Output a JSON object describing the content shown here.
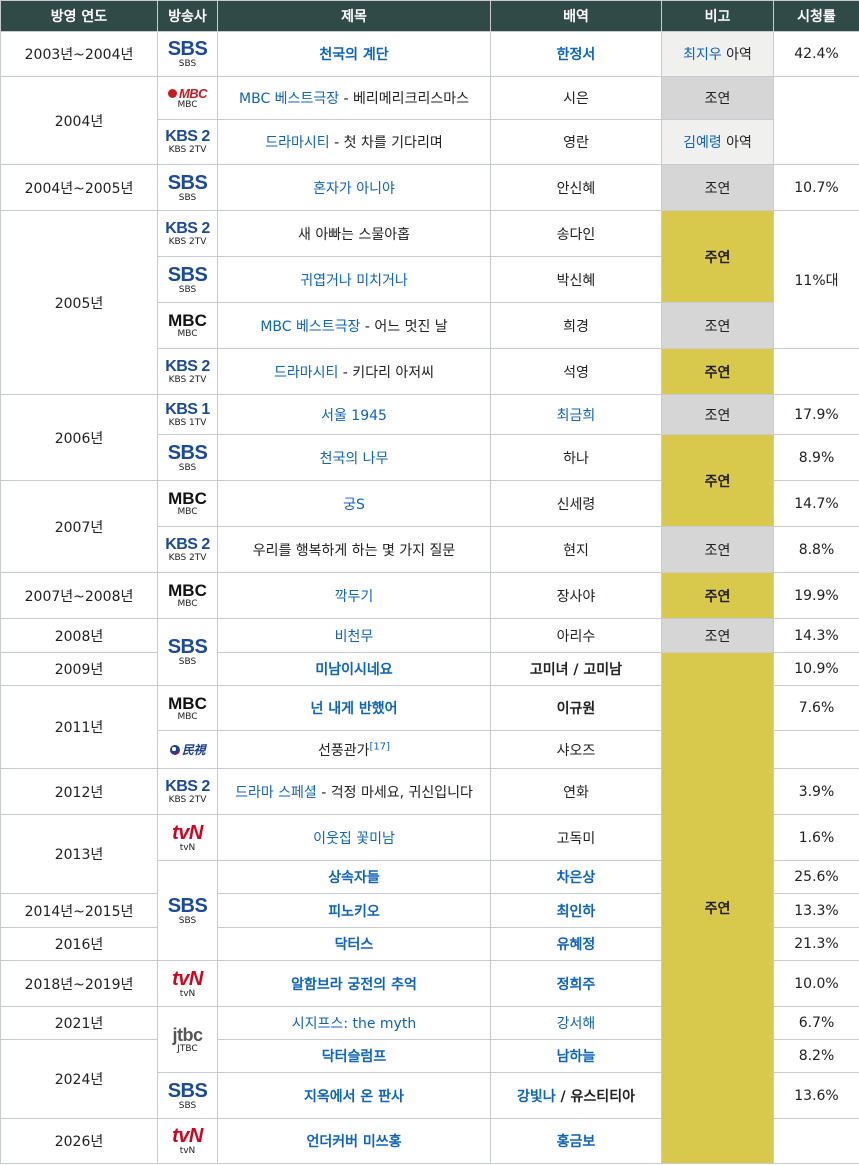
{
  "header": {
    "year": "방영 연도",
    "network": "방송사",
    "title": "제목",
    "role": "배역",
    "note": "비고",
    "rating": "시청률"
  },
  "colors": {
    "header_bg": "#2f4a47",
    "lead": "#d8c84c",
    "support": "#d6d6d6",
    "child": "#f0f0ee",
    "link": "#0b63c4"
  },
  "rows": [
    {
      "year": "2003년~2004년",
      "network": {
        "mark": "SBS",
        "cap": "SBS"
      },
      "title": "천국의 계단",
      "role": "한정서",
      "note_link": "최지우",
      "note_text": " 아역",
      "rating": "42.4%"
    },
    {
      "year": "2004년",
      "network": {
        "mark": "MBC",
        "cap": "MBC"
      },
      "title_link": "MBC 베스트극장",
      "title_rest": " - 베리메리크리스마스",
      "role": "시은",
      "note": "조연",
      "rating": ""
    },
    {
      "network": {
        "mark": "KBS 2",
        "cap": "KBS 2TV"
      },
      "title_link": "드라마시티",
      "title_rest": " - 첫 차를 기다리며",
      "role": "영란",
      "note_link": "김예령",
      "note_text": " 아역"
    },
    {
      "year": "2004년~2005년",
      "network": {
        "mark": "SBS",
        "cap": "SBS"
      },
      "title": "혼자가 아니야",
      "role": "안신혜",
      "note": "조연",
      "rating": "10.7%"
    },
    {
      "year": "2005년",
      "network": {
        "mark": "KBS 2",
        "cap": "KBS 2TV"
      },
      "title": "새 아빠는 스물아홉",
      "role": "송다인",
      "note": "주연"
    },
    {
      "network": {
        "mark": "SBS",
        "cap": "SBS"
      },
      "title": "귀엽거나 미치거나",
      "role": "박신혜",
      "rating": "11%대"
    },
    {
      "network": {
        "mark": "MBC",
        "cap": "MBC"
      },
      "title_link": "MBC 베스트극장",
      "title_rest": " - 어느 멋진 날",
      "role": "희경",
      "note": "조연"
    },
    {
      "network": {
        "mark": "KBS 2",
        "cap": "KBS 2TV"
      },
      "title_link": "드라마시티",
      "title_rest": " - 키다리 아저씨",
      "role": "석영",
      "note": "주연"
    },
    {
      "year": "2006년",
      "network": {
        "mark": "KBS 1",
        "cap": "KBS 1TV"
      },
      "title": "서울 1945",
      "role": "최금희",
      "note": "조연",
      "rating": "17.9%"
    },
    {
      "network": {
        "mark": "SBS",
        "cap": "SBS"
      },
      "title": "천국의 나무",
      "role": "하나",
      "note": "주연",
      "rating": "8.9%"
    },
    {
      "year": "2007년",
      "network": {
        "mark": "MBC",
        "cap": "MBC"
      },
      "title": "궁S",
      "role": "신세령",
      "rating": "14.7%"
    },
    {
      "network": {
        "mark": "KBS 2",
        "cap": "KBS 2TV"
      },
      "title": "우리를 행복하게 하는 몇 가지 질문",
      "role": "현지",
      "note": "조연",
      "rating": "8.8%"
    },
    {
      "year": "2007년~2008년",
      "network": {
        "mark": "MBC",
        "cap": "MBC"
      },
      "title": "깍두기",
      "role": "장사야",
      "note": "주연",
      "rating": "19.9%"
    },
    {
      "year": "2008년",
      "network": {
        "mark": "SBS",
        "cap": "SBS"
      },
      "title": "비천무",
      "role": "아리수",
      "note": "조연",
      "rating": "14.3%"
    },
    {
      "year": "2009년",
      "title": "미남이시네요",
      "role": "고미녀 / 고미남",
      "note": "주연",
      "rating": "10.9%"
    },
    {
      "year": "2011년",
      "network": {
        "mark": "MBC",
        "cap": "MBC"
      },
      "title": "넌 내게 반했어",
      "role": "이규원",
      "rating": "7.6%"
    },
    {
      "network": {
        "mark": "民視",
        "cap": ""
      },
      "title_plain": "선풍관가",
      "title_ref": "[17]",
      "role": "샤오즈"
    },
    {
      "year": "2012년",
      "network": {
        "mark": "KBS 2",
        "cap": "KBS 2TV"
      },
      "title_link": "드라마 스페셜",
      "title_rest": " - 걱정 마세요, 귀신입니다",
      "role": "연화",
      "rating": "3.9%"
    },
    {
      "year": "2013년",
      "network": {
        "mark": "tvN",
        "cap": "tvN"
      },
      "title": "이웃집 꽃미남",
      "role": "고독미",
      "rating": "1.6%"
    },
    {
      "network": {
        "mark": "SBS",
        "cap": "SBS"
      },
      "title": "상속자들",
      "role": "차은상",
      "rating": "25.6%"
    },
    {
      "year": "2014년~2015년",
      "title": "피노키오",
      "role": "최인하",
      "rating": "13.3%"
    },
    {
      "year": "2016년",
      "title": "닥터스",
      "role": "유혜정",
      "rating": "21.3%"
    },
    {
      "year": "2018년~2019년",
      "network": {
        "mark": "tvN",
        "cap": "tvN"
      },
      "title": "알함브라 궁전의 추억",
      "role": "정희주",
      "rating": "10.0%"
    },
    {
      "year": "2021년",
      "network": {
        "mark": "jtbc",
        "cap": "JTBC"
      },
      "title": "시지프스: the myth",
      "role": "강서해",
      "rating": "6.7%"
    },
    {
      "year": "2024년",
      "title": "닥터슬럼프",
      "role": "남하늘",
      "rating": "8.2%"
    },
    {
      "network": {
        "mark": "SBS",
        "cap": "SBS"
      },
      "title": "지옥에서 온 판사",
      "role_link": "강빛나",
      "role_rest": " / 유스티티아",
      "rating": "13.6%"
    },
    {
      "year": "2026년",
      "network": {
        "mark": "tvN",
        "cap": "tvN"
      },
      "title": "언더커버 미쓰홍",
      "role": "홍금보",
      "rating": ""
    }
  ]
}
